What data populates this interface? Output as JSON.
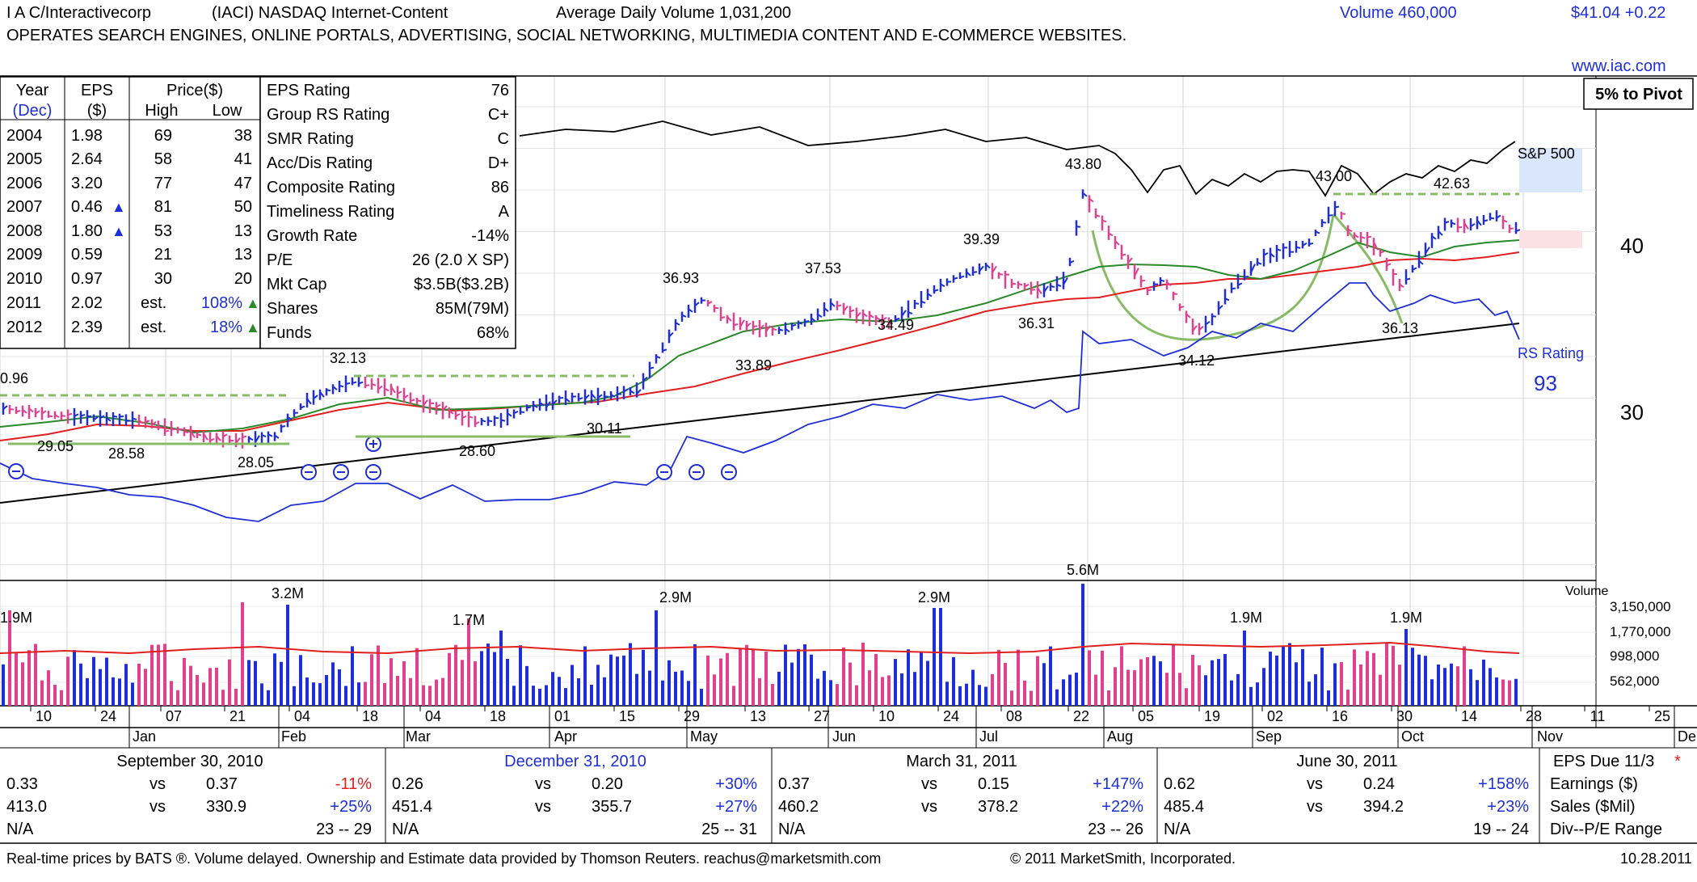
{
  "header": {
    "name": "I A C/Interactivecorp",
    "ticker_exchange": "(IACI) NASDAQ Internet-Content",
    "avg_volume": "Average Daily Volume 1,031,200",
    "volume": "Volume 460,000",
    "price_change": "$41.04 +0.22",
    "description": "OPERATES SEARCH ENGINES, ONLINE PORTALS, ADVERTISING, SOCIAL NETWORKING, MULTIMEDIA CONTENT AND E-COMMERCE WEBSITES.",
    "website": "www.iac.com",
    "pivot_button": "5% to Pivot"
  },
  "eps_table": {
    "header_year": "Year",
    "header_dec": "(Dec)",
    "header_eps": "EPS",
    "header_dollar": "($)",
    "header_price": "Price($)",
    "header_high": "High",
    "header_low": "Low",
    "rows": [
      {
        "year": "2004",
        "eps": "1.98",
        "arrow": "",
        "high": "69",
        "low": "38"
      },
      {
        "year": "2005",
        "eps": "2.64",
        "arrow": "",
        "high": "58",
        "low": "41"
      },
      {
        "year": "2006",
        "eps": "3.20",
        "arrow": "",
        "high": "77",
        "low": "47"
      },
      {
        "year": "2007",
        "eps": "0.46",
        "arrow": "▲",
        "high": "81",
        "low": "50"
      },
      {
        "year": "2008",
        "eps": "1.80",
        "arrow": "▲",
        "high": "53",
        "low": "13"
      },
      {
        "year": "2009",
        "eps": "0.59",
        "arrow": "",
        "high": "21",
        "low": "13"
      },
      {
        "year": "2010",
        "eps": "0.97",
        "arrow": "",
        "high": "30",
        "low": "20"
      }
    ],
    "est_rows": [
      {
        "year": "2011",
        "eps": "2.02",
        "est": "est.",
        "pct": "108%",
        "arrow": "▲"
      },
      {
        "year": "2012",
        "eps": "2.39",
        "est": "est.",
        "pct": "18%",
        "arrow": "▲"
      }
    ]
  },
  "ratings": [
    {
      "label": "EPS Rating",
      "value": "76"
    },
    {
      "label": "Group RS Rating",
      "value": "C+"
    },
    {
      "label": "SMR Rating",
      "value": "C"
    },
    {
      "label": "Acc/Dis Rating",
      "value": "D+"
    },
    {
      "label": "Composite Rating",
      "value": "86"
    },
    {
      "label": "Timeliness Rating",
      "value": "A"
    },
    {
      "label": "Growth Rate",
      "value": "-14%"
    },
    {
      "label": "P/E",
      "value": "26 (2.0 X SP)"
    },
    {
      "label": "Mkt Cap",
      "value": "$3.5B($3.2B)"
    },
    {
      "label": "Shares",
      "value": "85M(79M)"
    },
    {
      "label": "Funds",
      "value": "68%"
    }
  ],
  "chart_data": {
    "type": "bar",
    "price_axis": {
      "ticks": [
        "40",
        "30"
      ],
      "scale": "log"
    },
    "volume_axis": {
      "title": "Volume",
      "ticks": [
        "3,150,000",
        "1,770,000",
        "998,000",
        "562,000"
      ]
    },
    "date_axis": {
      "day_labels": [
        "10",
        "24",
        "07",
        "21",
        "04",
        "18",
        "04",
        "18",
        "01",
        "15",
        "29",
        "13",
        "27",
        "10",
        "24",
        "08",
        "22",
        "05",
        "19",
        "02",
        "16",
        "30",
        "14",
        "28",
        "11",
        "25"
      ],
      "month_labels": [
        "Jan",
        "Feb",
        "Mar",
        "Apr",
        "May",
        "Jun",
        "Jul",
        "Aug",
        "Sep",
        "Oct",
        "Nov",
        "De"
      ]
    },
    "price_annotations": [
      "0.96",
      "29.05",
      "28.58",
      "28.05",
      "32.13",
      "28.60",
      "30.11",
      "36.93",
      "33.89",
      "37.53",
      "34.49",
      "39.39",
      "36.31",
      "43.80",
      "34.12",
      "43.00",
      "36.13",
      "42.63"
    ],
    "volume_annotations": [
      "1.9M",
      "3.2M",
      "1.7M",
      "2.9M",
      "2.9M",
      "5.6M",
      "1.9M",
      "1.9M"
    ],
    "series_labels": [
      "S&P 500",
      "RS Rating"
    ],
    "rs_rating_value": "93",
    "colors": {
      "up": "#1f2fd6",
      "down": "#e0408f",
      "ma50": "#2a8a2a",
      "ma200": "#e02020",
      "rs": "#1f2fd6",
      "base": "#88bb66",
      "sp500": "#000000"
    }
  },
  "quarters": [
    {
      "title": "September 30, 2010",
      "title_color": "#000000",
      "eps_cur": "0.33",
      "vs": "vs",
      "eps_prev": "0.37",
      "eps_pct": "-11%",
      "eps_pct_color": "#e02020",
      "sales_cur": "413.0",
      "sales_prev": "330.9",
      "sales_pct": "+25%",
      "sales_pct_color": "#1f2fd6",
      "div": "N/A",
      "range": "23 -- 29"
    },
    {
      "title": "December 31, 2010",
      "title_color": "#1f2fd6",
      "eps_cur": "0.26",
      "vs": "vs",
      "eps_prev": "0.20",
      "eps_pct": "+30%",
      "eps_pct_color": "#1f2fd6",
      "sales_cur": "451.4",
      "sales_prev": "355.7",
      "sales_pct": "+27%",
      "sales_pct_color": "#1f2fd6",
      "div": "N/A",
      "range": "25 -- 31"
    },
    {
      "title": "March 31, 2011",
      "title_color": "#000000",
      "eps_cur": "0.37",
      "vs": "vs",
      "eps_prev": "0.15",
      "eps_pct": "+147%",
      "eps_pct_color": "#1f2fd6",
      "sales_cur": "460.2",
      "sales_prev": "378.2",
      "sales_pct": "+22%",
      "sales_pct_color": "#1f2fd6",
      "div": "N/A",
      "range": "23 -- 26"
    },
    {
      "title": "June 30, 2011",
      "title_color": "#000000",
      "eps_cur": "0.62",
      "vs": "vs",
      "eps_prev": "0.24",
      "eps_pct": "+158%",
      "eps_pct_color": "#1f2fd6",
      "sales_cur": "485.4",
      "sales_prev": "394.2",
      "sales_pct": "+23%",
      "sales_pct_color": "#1f2fd6",
      "div": "N/A",
      "range": "19 -- 24"
    }
  ],
  "legend_box": {
    "title": "EPS Due 11/3",
    "star": "*",
    "earnings": "Earnings ($)",
    "sales": "Sales ($Mil)",
    "divpe": "Div--P/E Range"
  },
  "footer": {
    "left": "Real-time prices by BATS ®. Volume delayed. Ownership and Estimate data provided by Thomson Reuters. reachus@marketsmith.com",
    "copyright": "© 2011 MarketSmith, Incorporated.",
    "date": "10.28.2011"
  }
}
